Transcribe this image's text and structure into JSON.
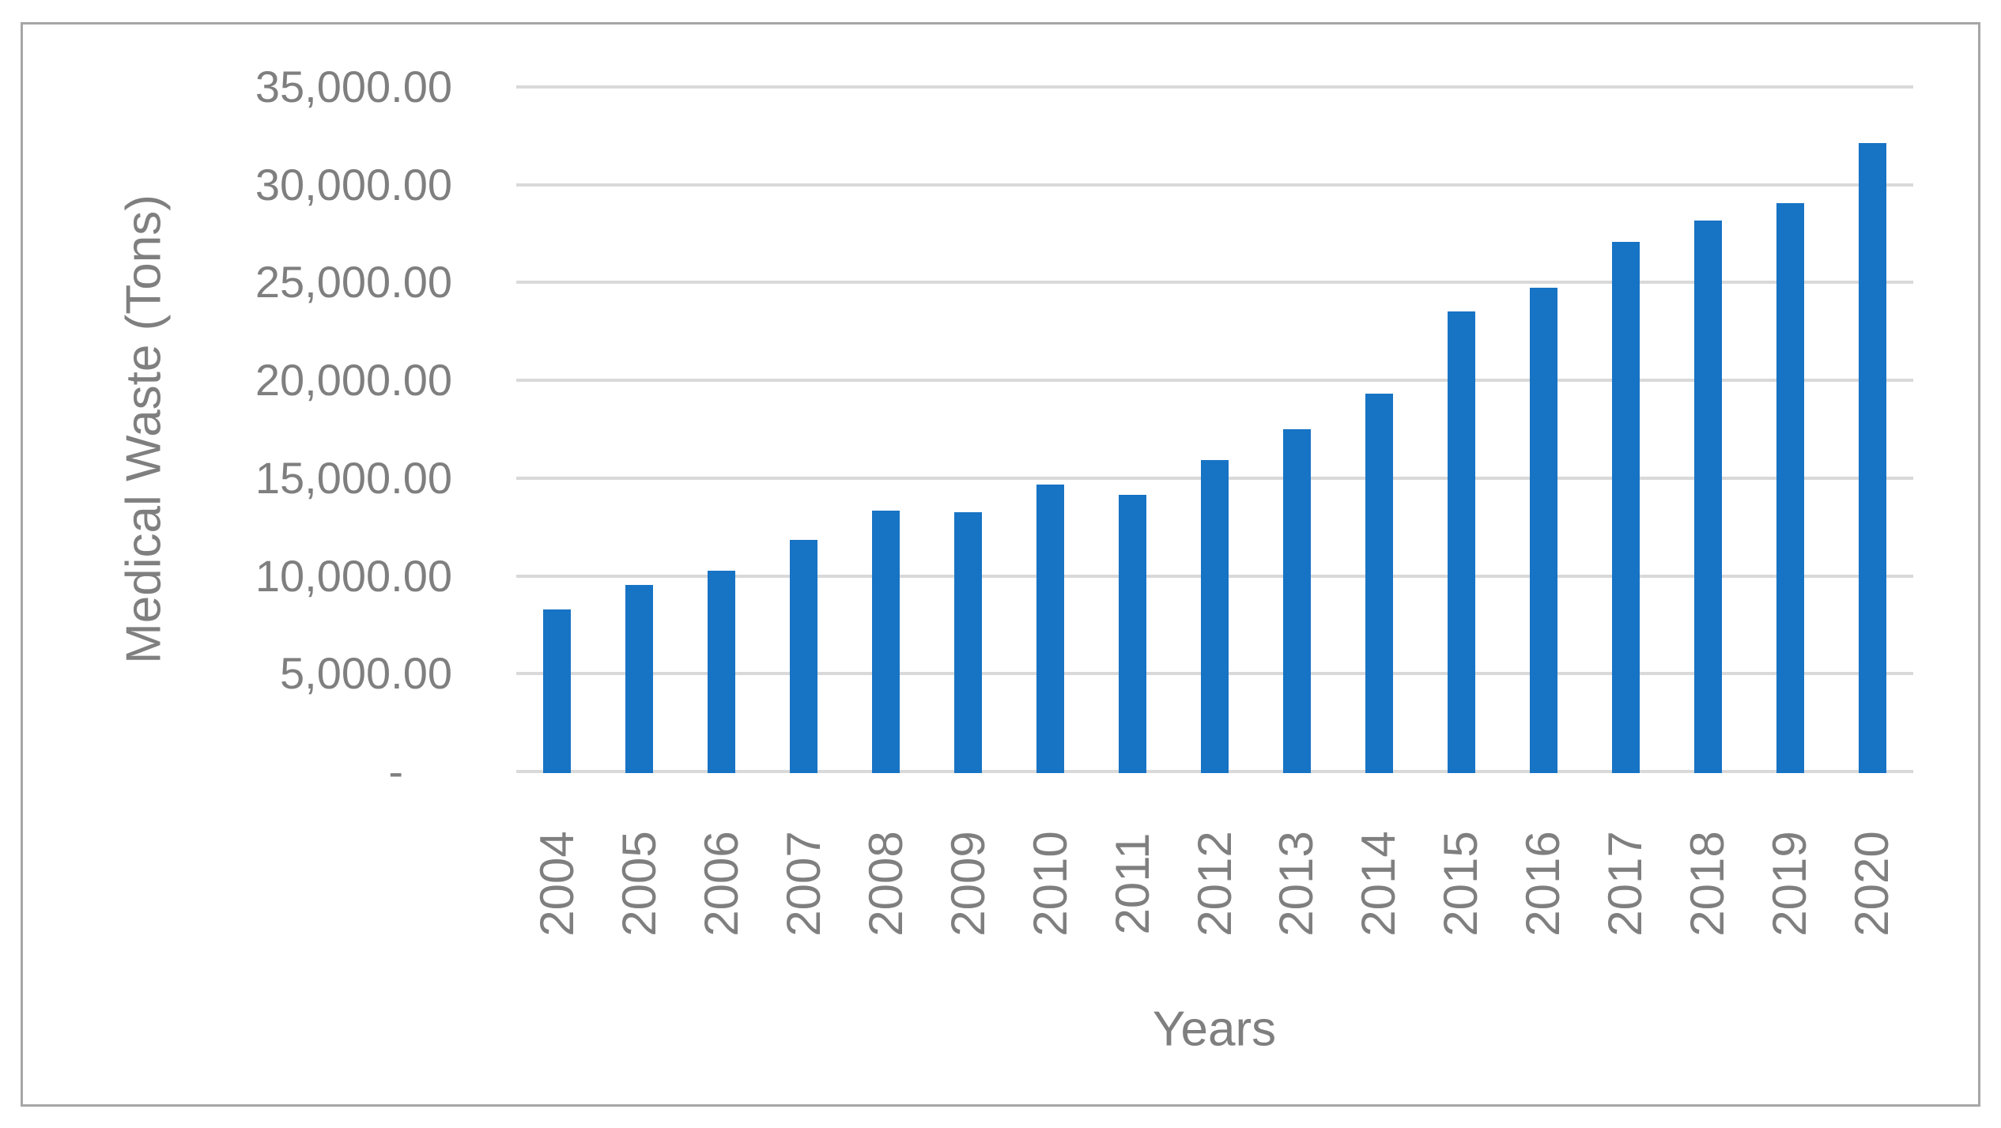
{
  "chart_data": {
    "type": "bar",
    "title": "",
    "xlabel": "Years",
    "ylabel": "Medical Waste (Tons)",
    "categories": [
      "2004",
      "2005",
      "2006",
      "2007",
      "2008",
      "2009",
      "2010",
      "2011",
      "2012",
      "2013",
      "2014",
      "2015",
      "2016",
      "2017",
      "2018",
      "2019",
      "2020"
    ],
    "values": [
      8270,
      9520,
      10250,
      11830,
      13340,
      13260,
      14680,
      14150,
      15930,
      17500,
      19300,
      23530,
      24740,
      27060,
      28150,
      29070,
      32130
    ],
    "ylim": [
      0,
      35000
    ],
    "ytick_step": 5000,
    "ytick_labels": [
      "-",
      "5,000.00",
      "10,000.00",
      "15,000.00",
      "20,000.00",
      "25,000.00",
      "30,000.00",
      "35,000.00"
    ],
    "grid": true,
    "legend": "none",
    "colors": {
      "bar": "#1773c4",
      "gridline": "#d9d9d9",
      "text": "#7f7f7f",
      "frame": "#a6a6a6",
      "background": "#ffffff"
    }
  }
}
